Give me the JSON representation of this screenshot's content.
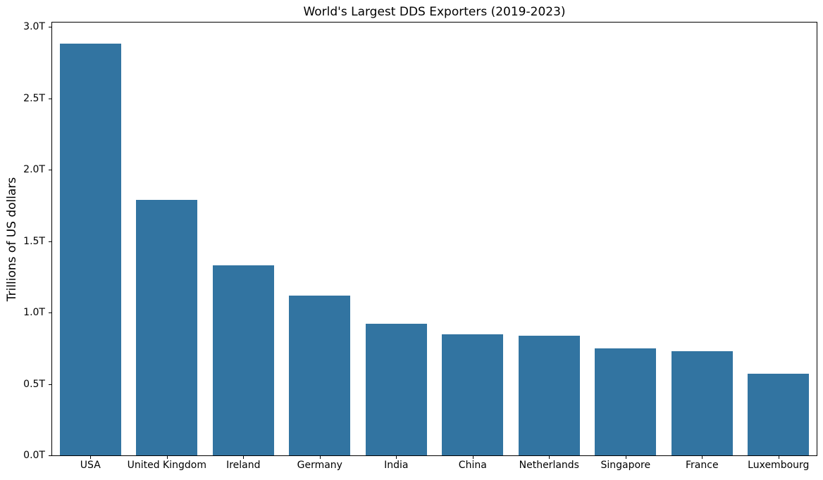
{
  "chart_data": {
    "type": "bar",
    "title": "World's Largest DDS Exporters (2019-2023)",
    "xlabel": "",
    "ylabel": "Trillions of US dollars",
    "categories": [
      "USA",
      "United Kingdom",
      "Ireland",
      "Germany",
      "India",
      "China",
      "Netherlands",
      "Singapore",
      "France",
      "Luxembourg"
    ],
    "values": [
      2.88,
      1.79,
      1.33,
      1.12,
      0.92,
      0.85,
      0.84,
      0.75,
      0.73,
      0.57
    ],
    "yticks": [
      0.0,
      0.5,
      1.0,
      1.5,
      2.0,
      2.5,
      3.0
    ],
    "ytick_labels": [
      "0.0T",
      "0.5T",
      "1.0T",
      "1.5T",
      "2.0T",
      "2.5T",
      "3.0T"
    ],
    "ylim": [
      0,
      3.03
    ],
    "bar_color": "#3274a1",
    "bar_width_fraction": 0.8,
    "grid": false,
    "legend": null,
    "axis_color": "#000000",
    "text_color": "#000000"
  }
}
